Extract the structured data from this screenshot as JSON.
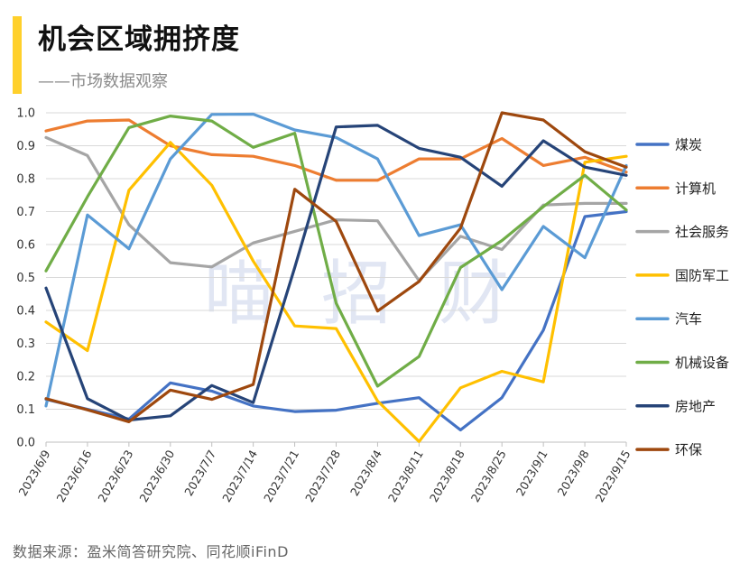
{
  "header": {
    "title": "机会区域拥挤度",
    "subtitle": "——市场数据观察"
  },
  "source": "数据来源：盈米简答研究院、同花顺iFinD",
  "watermark": [
    "喵",
    "招",
    "财"
  ],
  "chart_data": {
    "type": "line",
    "title": "机会区域拥挤度",
    "xlabel": "",
    "ylabel": "",
    "ylim": [
      0,
      1.0
    ],
    "yticks": [
      "0.0",
      "0.1",
      "0.2",
      "0.3",
      "0.4",
      "0.5",
      "0.6",
      "0.7",
      "0.8",
      "0.9",
      "1.0"
    ],
    "grid": true,
    "legend_position": "right",
    "x": [
      "2023/6/9",
      "2023/6/16",
      "2023/6/23",
      "2023/6/30",
      "2023/7/7",
      "2023/7/14",
      "2023/7/21",
      "2023/7/28",
      "2023/8/4",
      "2023/8/11",
      "2023/8/18",
      "2023/8/25",
      "2023/9/1",
      "2023/9/8",
      "2023/9/15"
    ],
    "series": [
      {
        "name": "煤炭",
        "color": "#4472c4",
        "values": [
          0.13,
          0.1,
          0.07,
          0.18,
          0.155,
          0.11,
          0.093,
          0.097,
          0.118,
          0.135,
          0.037,
          0.135,
          0.34,
          0.685,
          0.7
        ]
      },
      {
        "name": "计算机",
        "color": "#ed7d31",
        "values": [
          0.945,
          0.975,
          0.978,
          0.9,
          0.873,
          0.868,
          0.84,
          0.795,
          0.795,
          0.86,
          0.86,
          0.922,
          0.84,
          0.865,
          0.82
        ]
      },
      {
        "name": "社会服务",
        "color": "#a5a5a5",
        "values": [
          0.925,
          0.87,
          0.66,
          0.545,
          0.532,
          0.605,
          0.64,
          0.675,
          0.672,
          0.49,
          0.625,
          0.585,
          0.72,
          0.725,
          0.725
        ]
      },
      {
        "name": "国防军工",
        "color": "#ffc000",
        "values": [
          0.365,
          0.278,
          0.765,
          0.91,
          0.78,
          0.55,
          0.353,
          0.345,
          0.125,
          0.002,
          0.165,
          0.215,
          0.183,
          0.85,
          0.868
        ]
      },
      {
        "name": "汽车",
        "color": "#5b9bd5",
        "values": [
          0.11,
          0.69,
          0.587,
          0.86,
          0.995,
          0.996,
          0.948,
          0.925,
          0.86,
          0.627,
          0.66,
          0.463,
          0.655,
          0.56,
          0.84
        ]
      },
      {
        "name": "机械设备",
        "color": "#70ad47",
        "values": [
          0.52,
          0.745,
          0.955,
          0.99,
          0.975,
          0.895,
          0.938,
          0.422,
          0.17,
          0.26,
          0.53,
          0.612,
          0.715,
          0.81,
          0.705
        ]
      },
      {
        "name": "房地产",
        "color": "#264478",
        "values": [
          0.468,
          0.132,
          0.067,
          0.08,
          0.172,
          0.12,
          0.53,
          0.957,
          0.962,
          0.892,
          0.865,
          0.777,
          0.915,
          0.835,
          0.81
        ]
      },
      {
        "name": "环保",
        "color": "#9e480e",
        "values": [
          0.132,
          0.098,
          0.062,
          0.158,
          0.13,
          0.175,
          0.768,
          0.67,
          0.398,
          0.488,
          0.65,
          1.0,
          0.978,
          0.882,
          0.835
        ]
      }
    ]
  }
}
